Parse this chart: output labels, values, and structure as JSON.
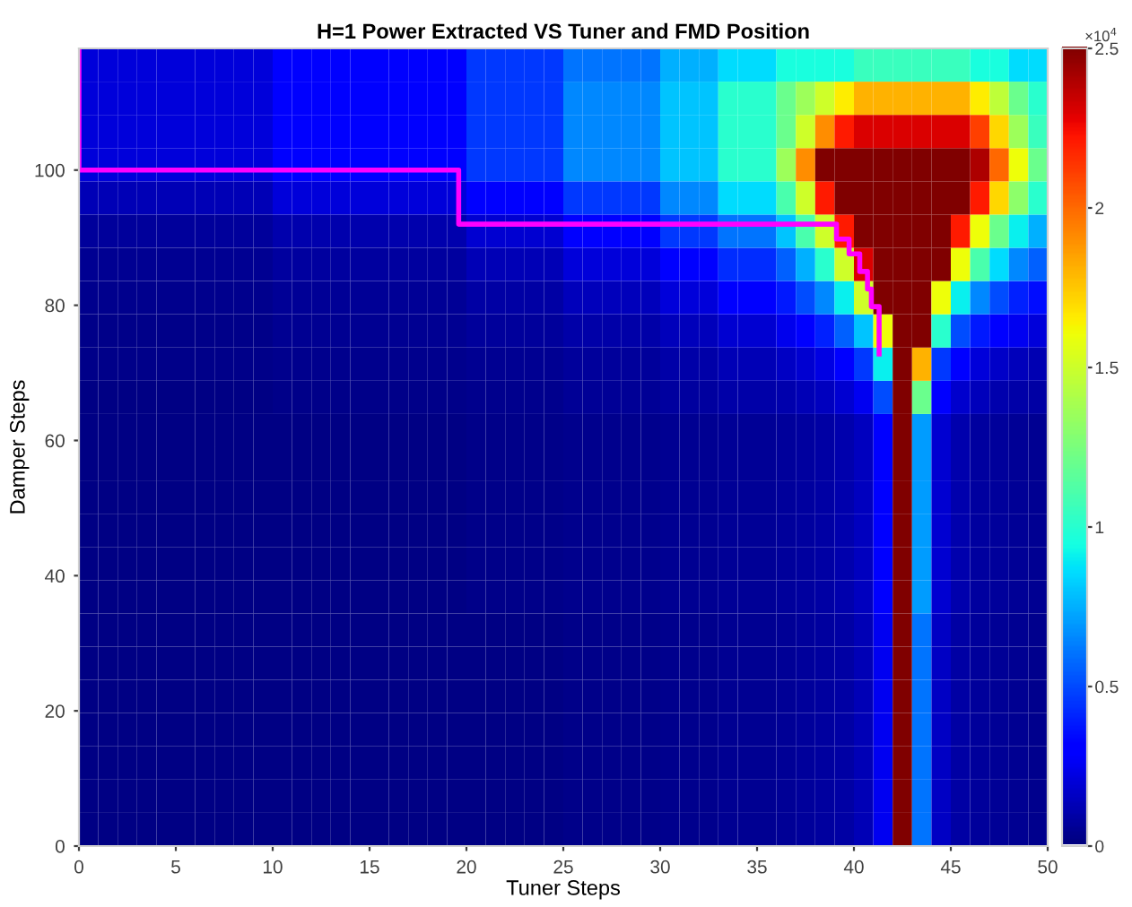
{
  "chart_data": {
    "type": "heatmap",
    "title": "H=1 Power Extracted VS Tuner and FMD Position",
    "xlabel": "Tuner Steps",
    "ylabel": "Damper Steps",
    "annotations": [
      "×10$^{4}$"
    ],
    "cells": [
      [
        0.2,
        0.2,
        0.2,
        0.2,
        0.2,
        0.2,
        0.2,
        0.2,
        0.2,
        0.2,
        0.3,
        0.3,
        0.3,
        0.3,
        0.3,
        0.3,
        0.3,
        0.3,
        0.3,
        0.3,
        0.45,
        0.45,
        0.45,
        0.45,
        0.45,
        0.6,
        0.6,
        0.6,
        0.6,
        0.6,
        0.75,
        0.75,
        0.75,
        0.85,
        0.85,
        0.85,
        0.95,
        0.95,
        0.95,
        0.95,
        1.05,
        1.05,
        1.05,
        1.05,
        1.05,
        1.05,
        0.95,
        0.95,
        0.85,
        0.85
      ],
      [
        0.2,
        0.2,
        0.2,
        0.2,
        0.2,
        0.2,
        0.2,
        0.2,
        0.2,
        0.2,
        0.3,
        0.3,
        0.3,
        0.3,
        0.3,
        0.3,
        0.3,
        0.3,
        0.3,
        0.3,
        0.45,
        0.45,
        0.45,
        0.45,
        0.45,
        0.65,
        0.65,
        0.65,
        0.65,
        0.65,
        0.8,
        0.8,
        0.8,
        1.0,
        1.0,
        1.0,
        1.2,
        1.35,
        1.5,
        1.65,
        1.8,
        1.8,
        1.8,
        1.8,
        1.8,
        1.8,
        1.65,
        1.45,
        1.2,
        1.0
      ],
      [
        0.2,
        0.2,
        0.2,
        0.2,
        0.2,
        0.2,
        0.2,
        0.2,
        0.2,
        0.2,
        0.3,
        0.3,
        0.3,
        0.3,
        0.3,
        0.3,
        0.3,
        0.3,
        0.3,
        0.3,
        0.45,
        0.45,
        0.45,
        0.45,
        0.45,
        0.65,
        0.65,
        0.65,
        0.65,
        0.65,
        0.8,
        0.8,
        0.8,
        1.0,
        1.0,
        1.0,
        1.2,
        1.5,
        1.9,
        2.2,
        2.3,
        2.3,
        2.3,
        2.3,
        2.3,
        2.3,
        2.1,
        1.7,
        1.35,
        1.05
      ],
      [
        0.2,
        0.2,
        0.2,
        0.2,
        0.2,
        0.2,
        0.2,
        0.2,
        0.2,
        0.2,
        0.3,
        0.3,
        0.3,
        0.3,
        0.3,
        0.3,
        0.3,
        0.3,
        0.3,
        0.3,
        0.45,
        0.45,
        0.45,
        0.45,
        0.45,
        0.65,
        0.65,
        0.65,
        0.65,
        0.65,
        0.8,
        0.8,
        0.8,
        1.0,
        1.0,
        1.0,
        1.35,
        1.9,
        2.5,
        2.5,
        2.5,
        2.5,
        2.5,
        2.5,
        2.5,
        2.5,
        2.4,
        2.0,
        1.6,
        1.2
      ],
      [
        0.12,
        0.12,
        0.12,
        0.12,
        0.12,
        0.12,
        0.12,
        0.12,
        0.12,
        0.12,
        0.2,
        0.2,
        0.2,
        0.2,
        0.2,
        0.2,
        0.2,
        0.2,
        0.2,
        0.2,
        0.3,
        0.3,
        0.3,
        0.3,
        0.3,
        0.45,
        0.45,
        0.45,
        0.45,
        0.45,
        0.65,
        0.65,
        0.65,
        0.85,
        0.85,
        0.85,
        1.1,
        1.5,
        2.2,
        2.5,
        2.5,
        2.5,
        2.5,
        2.5,
        2.5,
        2.5,
        2.2,
        1.7,
        1.3,
        1.0
      ],
      [
        0.06,
        0.06,
        0.06,
        0.06,
        0.06,
        0.06,
        0.06,
        0.06,
        0.06,
        0.06,
        0.1,
        0.1,
        0.1,
        0.1,
        0.1,
        0.1,
        0.1,
        0.1,
        0.1,
        0.1,
        0.18,
        0.18,
        0.18,
        0.18,
        0.18,
        0.3,
        0.3,
        0.3,
        0.3,
        0.3,
        0.45,
        0.45,
        0.45,
        0.6,
        0.6,
        0.6,
        0.8,
        1.1,
        1.5,
        2.2,
        2.5,
        2.5,
        2.5,
        2.5,
        2.5,
        2.2,
        1.6,
        1.2,
        0.9,
        0.75
      ],
      [
        0.04,
        0.04,
        0.04,
        0.04,
        0.04,
        0.04,
        0.04,
        0.04,
        0.04,
        0.04,
        0.07,
        0.07,
        0.07,
        0.07,
        0.07,
        0.07,
        0.07,
        0.07,
        0.07,
        0.07,
        0.12,
        0.12,
        0.12,
        0.12,
        0.12,
        0.2,
        0.2,
        0.2,
        0.2,
        0.2,
        0.3,
        0.3,
        0.3,
        0.42,
        0.42,
        0.42,
        0.55,
        0.75,
        1.0,
        1.5,
        2.3,
        2.5,
        2.5,
        2.5,
        2.5,
        1.6,
        1.1,
        0.85,
        0.65,
        0.55
      ],
      [
        0.03,
        0.03,
        0.03,
        0.03,
        0.03,
        0.03,
        0.03,
        0.03,
        0.03,
        0.03,
        0.05,
        0.05,
        0.05,
        0.05,
        0.05,
        0.05,
        0.05,
        0.05,
        0.05,
        0.05,
        0.08,
        0.08,
        0.08,
        0.08,
        0.08,
        0.13,
        0.13,
        0.13,
        0.13,
        0.13,
        0.2,
        0.2,
        0.2,
        0.28,
        0.28,
        0.28,
        0.38,
        0.5,
        0.65,
        0.9,
        1.5,
        2.5,
        2.5,
        2.5,
        1.6,
        0.9,
        0.65,
        0.5,
        0.4,
        0.35
      ],
      [
        0.02,
        0.02,
        0.02,
        0.02,
        0.02,
        0.02,
        0.02,
        0.02,
        0.02,
        0.02,
        0.04,
        0.04,
        0.04,
        0.04,
        0.04,
        0.04,
        0.04,
        0.04,
        0.04,
        0.04,
        0.06,
        0.06,
        0.06,
        0.06,
        0.06,
        0.09,
        0.09,
        0.09,
        0.09,
        0.09,
        0.13,
        0.13,
        0.13,
        0.18,
        0.18,
        0.18,
        0.24,
        0.3,
        0.4,
        0.55,
        0.8,
        1.6,
        2.5,
        2.5,
        1.0,
        0.5,
        0.38,
        0.3,
        0.25,
        0.2
      ],
      [
        0.02,
        0.02,
        0.02,
        0.02,
        0.02,
        0.02,
        0.02,
        0.02,
        0.02,
        0.02,
        0.03,
        0.03,
        0.03,
        0.03,
        0.03,
        0.03,
        0.03,
        0.03,
        0.03,
        0.03,
        0.04,
        0.04,
        0.04,
        0.04,
        0.04,
        0.06,
        0.06,
        0.06,
        0.06,
        0.06,
        0.09,
        0.09,
        0.09,
        0.12,
        0.12,
        0.12,
        0.15,
        0.18,
        0.22,
        0.3,
        0.45,
        0.9,
        2.5,
        1.8,
        0.45,
        0.28,
        0.2,
        0.16,
        0.13,
        0.11
      ],
      [
        0.01,
        0.01,
        0.01,
        0.01,
        0.01,
        0.01,
        0.01,
        0.01,
        0.01,
        0.01,
        0.02,
        0.02,
        0.02,
        0.02,
        0.02,
        0.02,
        0.02,
        0.02,
        0.02,
        0.02,
        0.03,
        0.03,
        0.03,
        0.03,
        0.03,
        0.05,
        0.05,
        0.05,
        0.05,
        0.05,
        0.07,
        0.07,
        0.07,
        0.09,
        0.09,
        0.09,
        0.1,
        0.12,
        0.14,
        0.18,
        0.25,
        0.5,
        2.5,
        1.2,
        0.3,
        0.17,
        0.13,
        0.1,
        0.09,
        0.08
      ],
      [
        0.01,
        0.01,
        0.01,
        0.01,
        0.01,
        0.01,
        0.01,
        0.01,
        0.01,
        0.01,
        0.01,
        0.01,
        0.01,
        0.01,
        0.01,
        0.01,
        0.01,
        0.01,
        0.01,
        0.01,
        0.02,
        0.02,
        0.02,
        0.02,
        0.02,
        0.03,
        0.03,
        0.03,
        0.03,
        0.03,
        0.04,
        0.04,
        0.04,
        0.05,
        0.05,
        0.05,
        0.06,
        0.07,
        0.08,
        0.1,
        0.14,
        0.3,
        2.5,
        0.7,
        0.18,
        0.1,
        0.07,
        0.06,
        0.05,
        0.04
      ],
      [
        0.01,
        0.01,
        0.01,
        0.01,
        0.01,
        0.01,
        0.01,
        0.01,
        0.01,
        0.01,
        0.01,
        0.01,
        0.01,
        0.01,
        0.01,
        0.01,
        0.01,
        0.01,
        0.01,
        0.01,
        0.02,
        0.02,
        0.02,
        0.02,
        0.02,
        0.03,
        0.03,
        0.03,
        0.03,
        0.03,
        0.04,
        0.04,
        0.04,
        0.05,
        0.05,
        0.05,
        0.06,
        0.07,
        0.08,
        0.1,
        0.14,
        0.3,
        2.5,
        0.7,
        0.18,
        0.1,
        0.07,
        0.06,
        0.05,
        0.04
      ],
      [
        0.01,
        0.01,
        0.01,
        0.01,
        0.01,
        0.01,
        0.01,
        0.01,
        0.01,
        0.01,
        0.01,
        0.01,
        0.01,
        0.01,
        0.01,
        0.01,
        0.01,
        0.01,
        0.01,
        0.01,
        0.02,
        0.02,
        0.02,
        0.02,
        0.02,
        0.03,
        0.03,
        0.03,
        0.03,
        0.03,
        0.04,
        0.04,
        0.04,
        0.05,
        0.05,
        0.05,
        0.06,
        0.07,
        0.08,
        0.1,
        0.14,
        0.3,
        2.5,
        0.7,
        0.18,
        0.1,
        0.07,
        0.06,
        0.05,
        0.04
      ],
      [
        0.01,
        0.01,
        0.01,
        0.01,
        0.01,
        0.01,
        0.01,
        0.01,
        0.01,
        0.01,
        0.01,
        0.01,
        0.01,
        0.01,
        0.01,
        0.01,
        0.01,
        0.01,
        0.01,
        0.01,
        0.02,
        0.02,
        0.02,
        0.02,
        0.02,
        0.03,
        0.03,
        0.03,
        0.03,
        0.03,
        0.04,
        0.04,
        0.04,
        0.05,
        0.05,
        0.05,
        0.06,
        0.07,
        0.08,
        0.1,
        0.14,
        0.3,
        2.5,
        0.7,
        0.18,
        0.1,
        0.07,
        0.06,
        0.05,
        0.04
      ],
      [
        0.01,
        0.01,
        0.01,
        0.01,
        0.01,
        0.01,
        0.01,
        0.01,
        0.01,
        0.01,
        0.01,
        0.01,
        0.01,
        0.01,
        0.01,
        0.01,
        0.01,
        0.01,
        0.01,
        0.01,
        0.02,
        0.02,
        0.02,
        0.02,
        0.02,
        0.03,
        0.03,
        0.03,
        0.03,
        0.03,
        0.04,
        0.04,
        0.04,
        0.05,
        0.05,
        0.05,
        0.06,
        0.07,
        0.08,
        0.1,
        0.14,
        0.3,
        2.5,
        0.7,
        0.18,
        0.1,
        0.07,
        0.06,
        0.05,
        0.04
      ],
      [
        0.01,
        0.01,
        0.01,
        0.01,
        0.01,
        0.01,
        0.01,
        0.01,
        0.01,
        0.01,
        0.01,
        0.01,
        0.01,
        0.01,
        0.01,
        0.01,
        0.01,
        0.01,
        0.01,
        0.01,
        0.02,
        0.02,
        0.02,
        0.02,
        0.02,
        0.03,
        0.03,
        0.03,
        0.03,
        0.03,
        0.04,
        0.04,
        0.04,
        0.05,
        0.05,
        0.05,
        0.06,
        0.07,
        0.08,
        0.1,
        0.14,
        0.3,
        2.5,
        0.7,
        0.18,
        0.1,
        0.07,
        0.06,
        0.05,
        0.04
      ],
      [
        0.01,
        0.01,
        0.01,
        0.01,
        0.01,
        0.01,
        0.01,
        0.01,
        0.01,
        0.01,
        0.01,
        0.01,
        0.01,
        0.01,
        0.01,
        0.01,
        0.01,
        0.01,
        0.01,
        0.01,
        0.01,
        0.01,
        0.01,
        0.01,
        0.01,
        0.02,
        0.02,
        0.02,
        0.02,
        0.02,
        0.03,
        0.03,
        0.03,
        0.04,
        0.04,
        0.04,
        0.05,
        0.06,
        0.07,
        0.08,
        0.12,
        0.25,
        2.5,
        0.6,
        0.15,
        0.08,
        0.06,
        0.05,
        0.04,
        0.03
      ],
      [
        0.01,
        0.01,
        0.01,
        0.01,
        0.01,
        0.01,
        0.01,
        0.01,
        0.01,
        0.01,
        0.01,
        0.01,
        0.01,
        0.01,
        0.01,
        0.01,
        0.01,
        0.01,
        0.01,
        0.01,
        0.01,
        0.01,
        0.01,
        0.01,
        0.01,
        0.02,
        0.02,
        0.02,
        0.02,
        0.02,
        0.03,
        0.03,
        0.03,
        0.04,
        0.04,
        0.04,
        0.05,
        0.06,
        0.07,
        0.08,
        0.12,
        0.25,
        2.5,
        0.6,
        0.15,
        0.08,
        0.06,
        0.05,
        0.04,
        0.03
      ],
      [
        0.01,
        0.01,
        0.01,
        0.01,
        0.01,
        0.01,
        0.01,
        0.01,
        0.01,
        0.01,
        0.01,
        0.01,
        0.01,
        0.01,
        0.01,
        0.01,
        0.01,
        0.01,
        0.01,
        0.01,
        0.01,
        0.01,
        0.01,
        0.01,
        0.01,
        0.02,
        0.02,
        0.02,
        0.02,
        0.02,
        0.03,
        0.03,
        0.03,
        0.04,
        0.04,
        0.04,
        0.05,
        0.06,
        0.07,
        0.08,
        0.12,
        0.25,
        2.5,
        0.6,
        0.15,
        0.08,
        0.06,
        0.05,
        0.04,
        0.03
      ],
      [
        0.01,
        0.01,
        0.01,
        0.01,
        0.01,
        0.01,
        0.01,
        0.01,
        0.01,
        0.01,
        0.01,
        0.01,
        0.01,
        0.01,
        0.01,
        0.01,
        0.01,
        0.01,
        0.01,
        0.01,
        0.01,
        0.01,
        0.01,
        0.01,
        0.01,
        0.02,
        0.02,
        0.02,
        0.02,
        0.02,
        0.03,
        0.03,
        0.03,
        0.04,
        0.04,
        0.04,
        0.05,
        0.06,
        0.07,
        0.08,
        0.12,
        0.25,
        2.5,
        0.6,
        0.15,
        0.08,
        0.06,
        0.05,
        0.04,
        0.03
      ],
      [
        0.01,
        0.01,
        0.01,
        0.01,
        0.01,
        0.01,
        0.01,
        0.01,
        0.01,
        0.01,
        0.01,
        0.01,
        0.01,
        0.01,
        0.01,
        0.01,
        0.01,
        0.01,
        0.01,
        0.01,
        0.01,
        0.01,
        0.01,
        0.01,
        0.01,
        0.02,
        0.02,
        0.02,
        0.02,
        0.02,
        0.03,
        0.03,
        0.03,
        0.04,
        0.04,
        0.04,
        0.05,
        0.06,
        0.07,
        0.08,
        0.12,
        0.25,
        2.5,
        0.6,
        0.15,
        0.08,
        0.06,
        0.05,
        0.04,
        0.03
      ],
      [
        0.01,
        0.01,
        0.01,
        0.01,
        0.01,
        0.01,
        0.01,
        0.01,
        0.01,
        0.01,
        0.01,
        0.01,
        0.01,
        0.01,
        0.01,
        0.01,
        0.01,
        0.01,
        0.01,
        0.01,
        0.01,
        0.01,
        0.01,
        0.01,
        0.01,
        0.02,
        0.02,
        0.02,
        0.02,
        0.02,
        0.03,
        0.03,
        0.03,
        0.04,
        0.04,
        0.04,
        0.05,
        0.06,
        0.07,
        0.08,
        0.12,
        0.25,
        2.5,
        0.6,
        0.15,
        0.08,
        0.06,
        0.05,
        0.04,
        0.03
      ],
      [
        0.01,
        0.01,
        0.01,
        0.01,
        0.01,
        0.01,
        0.01,
        0.01,
        0.01,
        0.01,
        0.01,
        0.01,
        0.01,
        0.01,
        0.01,
        0.01,
        0.01,
        0.01,
        0.01,
        0.01,
        0.01,
        0.01,
        0.01,
        0.01,
        0.01,
        0.02,
        0.02,
        0.02,
        0.02,
        0.02,
        0.03,
        0.03,
        0.03,
        0.04,
        0.04,
        0.04,
        0.05,
        0.06,
        0.07,
        0.08,
        0.12,
        0.25,
        2.5,
        0.6,
        0.15,
        0.08,
        0.06,
        0.05,
        0.04,
        0.03
      ]
    ],
    "clim": [
      0,
      2.5
    ],
    "cticks": [
      0,
      0.5,
      1,
      1.5,
      2,
      2.5
    ],
    "series": [
      {
        "type": "line",
        "color": "#ff00ff",
        "x": [
          0,
          0,
          19.6,
          19.6,
          39.1,
          39.1,
          39.75,
          39.75,
          40.3,
          40.3,
          40.7,
          40.7,
          40.9,
          40.9,
          41.3,
          41.3
        ],
        "values": [
          118,
          100,
          100,
          92,
          92,
          89.8,
          89.8,
          87.6,
          87.6,
          85,
          85,
          82.4,
          82.4,
          79.8,
          79.8,
          72.8
        ]
      }
    ],
    "xlim": [
      0,
      50
    ],
    "xticks": [
      0,
      5,
      10,
      15,
      20,
      25,
      30,
      35,
      40,
      45,
      50
    ],
    "ylim": [
      0,
      118
    ],
    "yticks": [
      0,
      20,
      40,
      60,
      80,
      100
    ]
  }
}
